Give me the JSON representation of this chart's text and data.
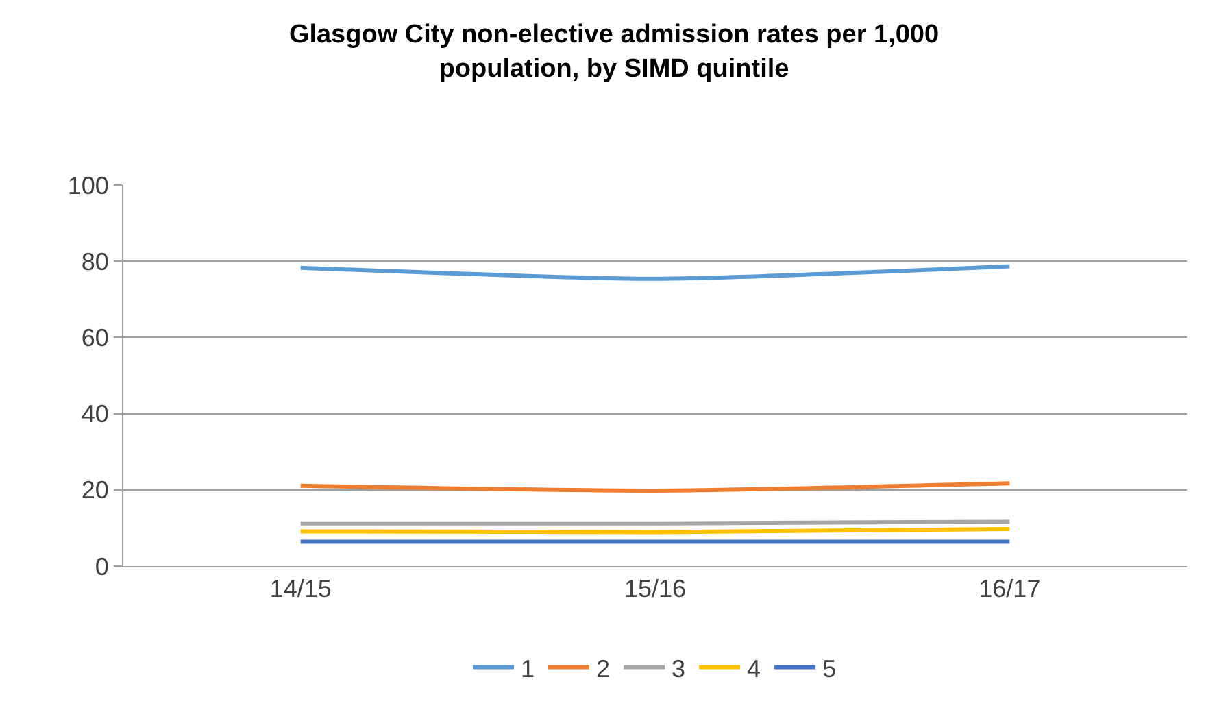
{
  "chart_data": {
    "type": "line",
    "title": "Glasgow City non-elective admission rates per 1,000\npopulation, by SIMD quintile",
    "categories": [
      "14/15",
      "15/16",
      "16/17"
    ],
    "series": [
      {
        "name": "1",
        "color": "#5b9bd5",
        "values": [
          78.3,
          75.4,
          78.7
        ]
      },
      {
        "name": "2",
        "color": "#ed7d31",
        "values": [
          21.1,
          19.8,
          21.7
        ]
      },
      {
        "name": "3",
        "color": "#a5a5a5",
        "values": [
          11.2,
          11.2,
          11.6
        ]
      },
      {
        "name": "4",
        "color": "#ffc000",
        "values": [
          9.1,
          8.9,
          9.7
        ]
      },
      {
        "name": "5",
        "color": "#4472c4",
        "values": [
          6.4,
          6.4,
          6.4
        ]
      }
    ],
    "ylim": [
      0,
      100
    ],
    "yticks": [
      0,
      20,
      40,
      60,
      80,
      100
    ],
    "grid": "y",
    "legend": "bottom",
    "marker": "none",
    "line_style": "solid"
  }
}
